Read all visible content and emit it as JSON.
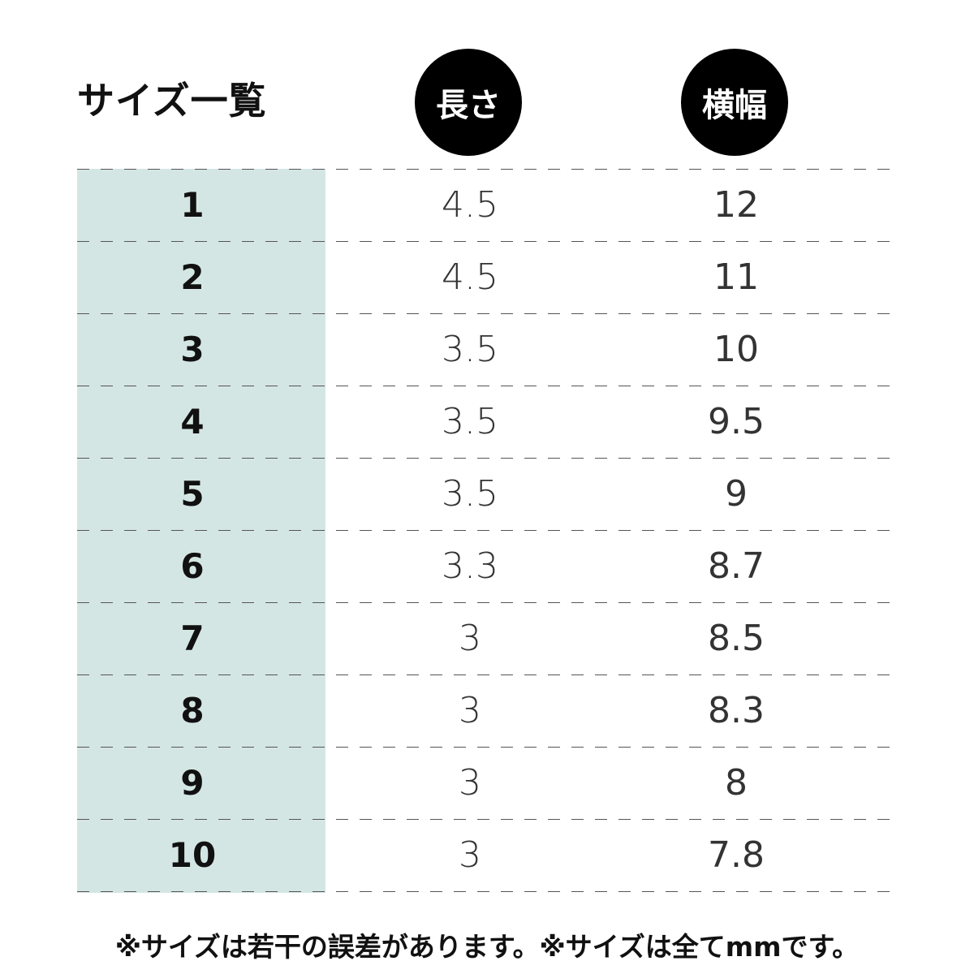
{
  "title": "サイズ一覧",
  "headers": {
    "length": "長さ",
    "width": "横幅"
  },
  "rows": [
    {
      "size": "1",
      "length": "4.5",
      "width": "12"
    },
    {
      "size": "2",
      "length": "4.5",
      "width": "11"
    },
    {
      "size": "3",
      "length": "3.5",
      "width": "10"
    },
    {
      "size": "4",
      "length": "3.5",
      "width": "9.5"
    },
    {
      "size": "5",
      "length": "3.5",
      "width": "9"
    },
    {
      "size": "6",
      "length": "3.3",
      "width": "8.7"
    },
    {
      "size": "7",
      "length": "3",
      "width": "8.5"
    },
    {
      "size": "8",
      "length": "3",
      "width": "8.3"
    },
    {
      "size": "9",
      "length": "3",
      "width": "8"
    },
    {
      "size": "10",
      "length": "3",
      "width": "7.8"
    }
  ],
  "note": "※サイズは若干の誤差があります。※サイズは全てmmです。",
  "colors": {
    "size_column_bg": "#d4e6e4",
    "header_circle": "#000000"
  }
}
